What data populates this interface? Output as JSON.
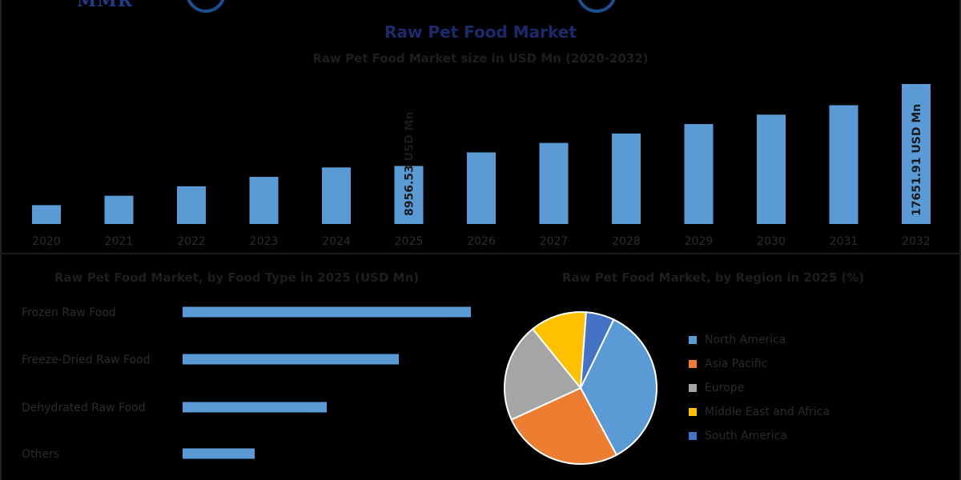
{
  "brand": {
    "logo_text": "MMR"
  },
  "chart_data": [
    {
      "type": "bar",
      "title": "Raw Pet Food Market",
      "subtitle": "Raw Pet Food Market size in USD Mn (2020-2032)",
      "categories": [
        "2020",
        "2021",
        "2022",
        "2023",
        "2024",
        "2025",
        "2026",
        "2027",
        "2028",
        "2029",
        "2030",
        "2031",
        "2032"
      ],
      "values": [
        4800,
        5800,
        6800,
        7800,
        8800,
        8956.53,
        10400,
        11400,
        12400,
        13400,
        14400,
        15400,
        17651.91
      ],
      "data_labels": [
        {
          "category": "2025",
          "text": "8956.53 USD Mn"
        },
        {
          "category": "2032",
          "text": "17651.91 USD Mn"
        }
      ],
      "ylim": [
        2800,
        17651.91
      ],
      "color": "#5b9bd5",
      "grid": false
    },
    {
      "type": "bar",
      "orientation": "horizontal",
      "title": "Raw Pet Food Market, by Food Type in 2025 (USD Mn)",
      "categories": [
        "Frozen Raw Food",
        "Freeze-Dried Raw Food",
        "Dehydrated Raw Food",
        "Others"
      ],
      "values": [
        100,
        75,
        50,
        25
      ],
      "color": "#5b9bd5",
      "grid": false
    },
    {
      "type": "pie",
      "title": "Raw Pet Food Market, by Region in 2025 (%)",
      "labels": [
        "North America",
        "Asia Pacific",
        "Europe",
        "Middle East and Africa",
        "South America"
      ],
      "values": [
        35,
        26,
        21,
        12,
        6
      ],
      "colors": [
        "#5b9bd5",
        "#ed7d31",
        "#a5a5a5",
        "#ffc000",
        "#4472c4"
      ],
      "legend": "right"
    }
  ]
}
